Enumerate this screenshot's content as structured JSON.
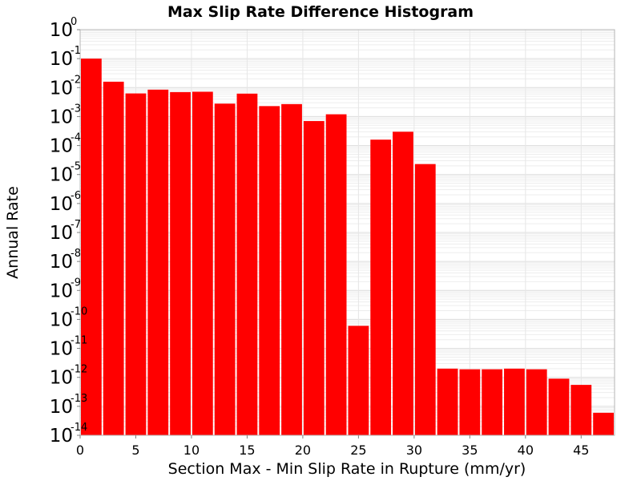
{
  "chart_data": {
    "type": "bar",
    "title": "Max Slip Rate Difference Histogram",
    "xlabel": "Section Max - Min Slip Rate in Rupture (mm/yr)",
    "ylabel": "Annual Rate",
    "yscale": "log",
    "ylim": [
      1e-14,
      1
    ],
    "xlim": [
      0,
      48
    ],
    "bin_width": 2,
    "x": [
      1,
      3,
      5,
      7,
      9,
      11,
      13,
      15,
      17,
      19,
      21,
      23,
      25,
      27,
      29,
      31,
      33,
      35,
      37,
      39,
      41,
      43,
      45,
      47
    ],
    "values": [
      0.1,
      0.016,
      0.0063,
      0.0085,
      0.007,
      0.0072,
      0.0028,
      0.0062,
      0.0023,
      0.0027,
      0.0007,
      0.0012,
      6e-11,
      0.00016,
      0.0003,
      2.3e-05,
      2e-12,
      1.9e-12,
      1.9e-12,
      2e-12,
      1.9e-12,
      9e-13,
      5.5e-13,
      6e-14
    ],
    "x_ticks": [
      "0",
      "5",
      "10",
      "15",
      "20",
      "25",
      "30",
      "35",
      "40",
      "45"
    ],
    "y_ticks": [
      {
        "base": "10",
        "exp": "0"
      },
      {
        "base": "10",
        "exp": "-1"
      },
      {
        "base": "10",
        "exp": "-2"
      },
      {
        "base": "10",
        "exp": "-3"
      },
      {
        "base": "10",
        "exp": "-4"
      },
      {
        "base": "10",
        "exp": "-5"
      },
      {
        "base": "10",
        "exp": "-6"
      },
      {
        "base": "10",
        "exp": "-7"
      },
      {
        "base": "10",
        "exp": "-8"
      },
      {
        "base": "10",
        "exp": "-9"
      },
      {
        "base": "10",
        "exp": "-10"
      },
      {
        "base": "10",
        "exp": "-11"
      },
      {
        "base": "10",
        "exp": "-12"
      },
      {
        "base": "10",
        "exp": "-13"
      },
      {
        "base": "10",
        "exp": "-14"
      }
    ],
    "grid": true,
    "bar_color": "#ff0000"
  }
}
